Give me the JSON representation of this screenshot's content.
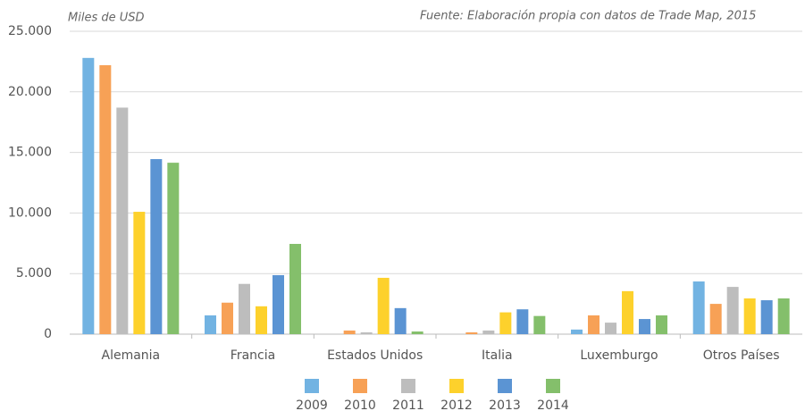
{
  "chart_data": {
    "type": "bar",
    "y_label": "Miles de USD",
    "source": "Fuente: Elaboración propia con datos de Trade Map, 2015",
    "categories": [
      "Alemania",
      "Francia",
      "Estados Unidos",
      "Italia",
      "Luxemburgo",
      "Otros Países"
    ],
    "series": [
      {
        "name": "2009",
        "color": "#72b3e2",
        "values": [
          22800,
          1550,
          0,
          0,
          380,
          4350
        ]
      },
      {
        "name": "2010",
        "color": "#f7a156",
        "values": [
          22200,
          2600,
          300,
          150,
          1550,
          2500
        ]
      },
      {
        "name": "2011",
        "color": "#bdbdbd",
        "values": [
          18700,
          4150,
          150,
          300,
          950,
          3900
        ]
      },
      {
        "name": "2012",
        "color": "#fdd12c",
        "values": [
          10100,
          2300,
          4650,
          1800,
          3550,
          2950
        ]
      },
      {
        "name": "2013",
        "color": "#5b94d3",
        "values": [
          14450,
          4870,
          2150,
          2050,
          1250,
          2800
        ]
      },
      {
        "name": "2014",
        "color": "#84bf6b",
        "values": [
          14150,
          7450,
          220,
          1500,
          1550,
          2950
        ]
      }
    ],
    "ylim": [
      0,
      25000
    ],
    "yticks": [
      0,
      {
        "value": 5000,
        "label": "5.000"
      },
      {
        "value": 10000,
        "label": "10.000"
      },
      {
        "value": 15000,
        "label": "15.000"
      },
      {
        "value": 20000,
        "label": "20.000"
      },
      {
        "value": 25000,
        "label": "25.000"
      }
    ],
    "grid": true
  }
}
